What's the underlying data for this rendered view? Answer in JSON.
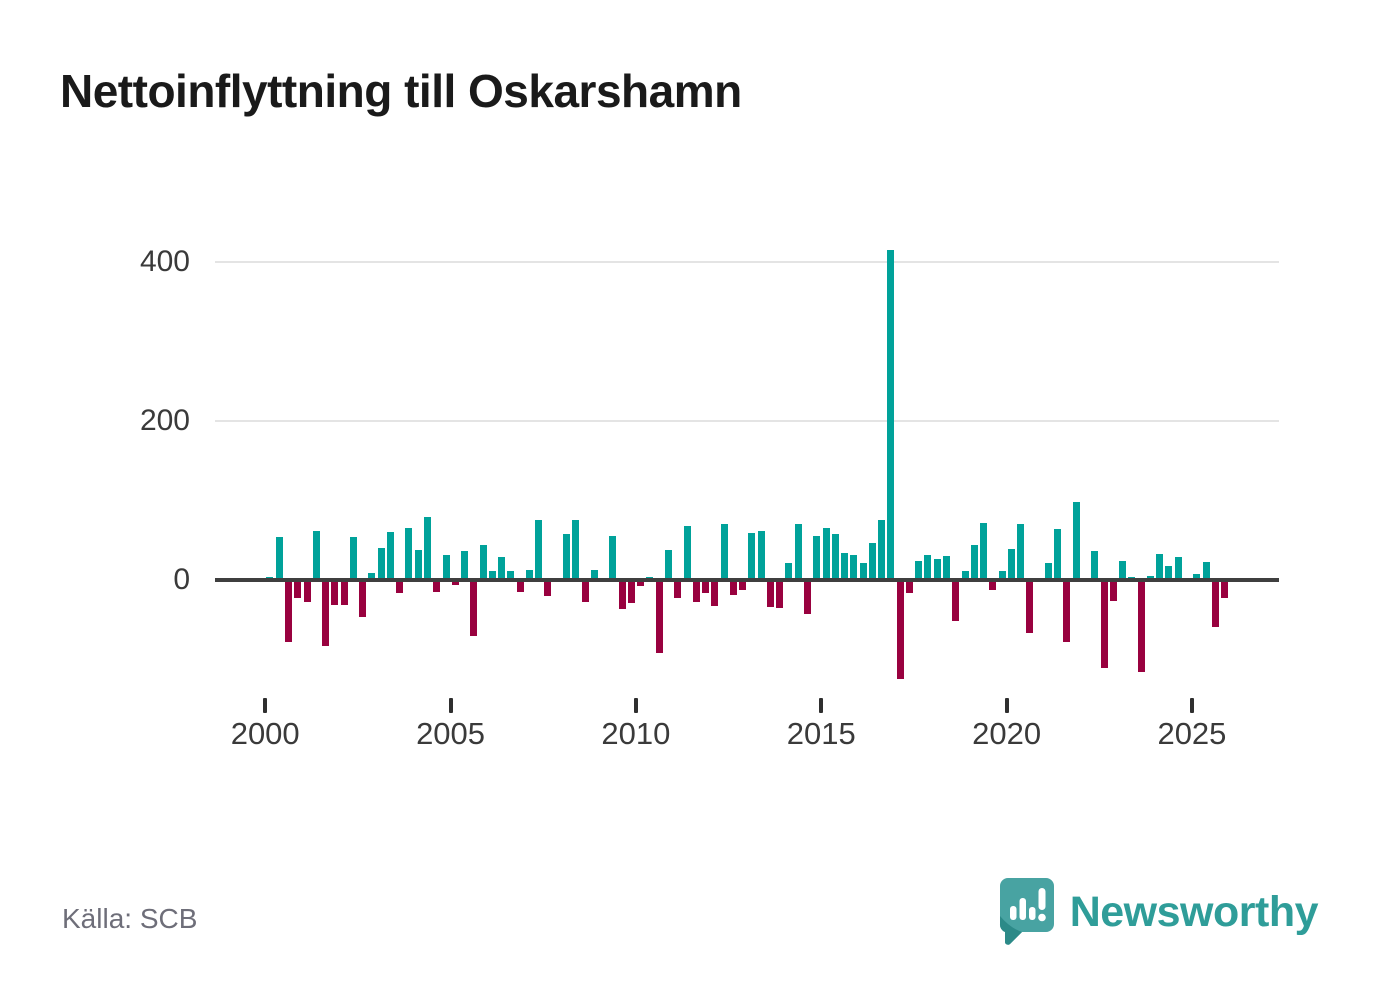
{
  "title": "Nettoinflyttning till Oskarshamn",
  "source": "Källa: SCB",
  "branding": {
    "name": "Newsworthy",
    "icon": "newsworthy-bubble-chart-icon"
  },
  "chart_data": {
    "type": "bar",
    "title": "Nettoinflyttning till Oskarshamn",
    "frequency": "quarterly",
    "period_start": "2000-Q1",
    "period_end": "2025-Q4",
    "values": [
      4,
      54,
      -78,
      -23,
      -28,
      62,
      -83,
      -31,
      -32,
      54,
      -47,
      9,
      40,
      60,
      -16,
      65,
      38,
      79,
      -15,
      32,
      -6,
      37,
      -70,
      44,
      12,
      29,
      12,
      -15,
      13,
      75,
      -20,
      0,
      58,
      76,
      -28,
      13,
      0,
      55,
      -36,
      -29,
      -8,
      4,
      -92,
      38,
      -22,
      68,
      -28,
      -16,
      -33,
      70,
      -19,
      -13,
      59,
      62,
      -34,
      -35,
      21,
      70,
      -43,
      55,
      66,
      58,
      34,
      31,
      22,
      47,
      75,
      415,
      -125,
      -16,
      24,
      31,
      27,
      30,
      -52,
      12,
      44,
      72,
      -13,
      12,
      39,
      70,
      -66,
      3,
      22,
      64,
      -78,
      98,
      0,
      36,
      -110,
      -26,
      24,
      4,
      -116,
      5,
      33,
      18,
      29,
      0,
      8,
      23,
      -59,
      -23
    ],
    "yticks": [
      0,
      200,
      400
    ],
    "ylim": [
      -130,
      430
    ],
    "xticks": [
      2000,
      2005,
      2010,
      2015,
      2020,
      2025
    ],
    "grid": "horizontal",
    "legend": "none",
    "colors": {
      "positive": "#00a29a",
      "negative": "#99013f"
    }
  }
}
